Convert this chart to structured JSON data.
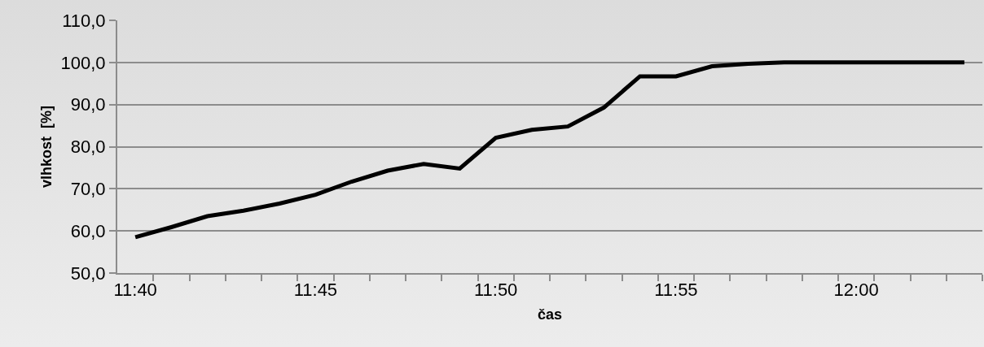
{
  "chart_data": {
    "type": "line",
    "xlabel": "čas",
    "ylabel": "vlhkost  [%]",
    "categories": [
      "11:40",
      null,
      null,
      null,
      null,
      "11:45",
      null,
      null,
      null,
      null,
      "11:50",
      null,
      null,
      null,
      null,
      "11:55",
      null,
      null,
      null,
      null,
      "12:00",
      null,
      null,
      null
    ],
    "series": [
      {
        "color": "#000000",
        "values": [
          58.5,
          60.9,
          63.5,
          64.8,
          66.5,
          68.6,
          71.7,
          74.3,
          75.9,
          74.8,
          82.1,
          84.0,
          84.8,
          89.3,
          96.7,
          96.7,
          99.1,
          99.7,
          100,
          100,
          100,
          100,
          100,
          100
        ]
      }
    ],
    "ylim": [
      50,
      110
    ],
    "yticks": [
      {
        "value": 50,
        "label": "50,0"
      },
      {
        "value": 60,
        "label": "60,0"
      },
      {
        "value": 70,
        "label": "70,0"
      },
      {
        "value": 80,
        "label": "80,0"
      },
      {
        "value": 90,
        "label": "90,0"
      },
      {
        "value": 100,
        "label": "100,0"
      },
      {
        "value": 110,
        "label": "110,0"
      }
    ],
    "grid": "y",
    "marker": "none",
    "line_style": "solid"
  }
}
